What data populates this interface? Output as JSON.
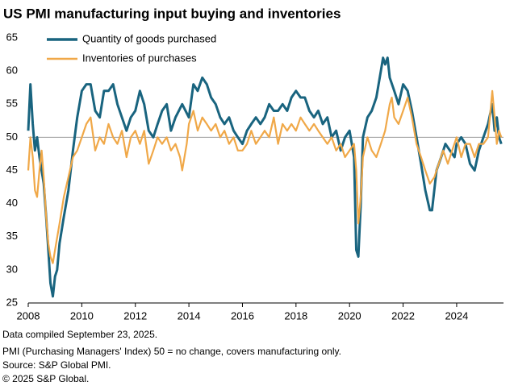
{
  "chart_data": {
    "type": "line",
    "title": "US PMI manufacturing input buying and inventories",
    "xlim": [
      2008,
      2025.75
    ],
    "xticks": [
      2008,
      2010,
      2012,
      2014,
      2016,
      2018,
      2020,
      2022,
      2024
    ],
    "ylim": [
      25,
      65
    ],
    "yticks": [
      25,
      30,
      35,
      40,
      45,
      50,
      55,
      60,
      65
    ],
    "reference_line": 50,
    "legend": "top-left",
    "series": [
      {
        "name": "Quantity of goods purchased",
        "color": "#19647f",
        "x": [
          2008.0,
          2008.08,
          2008.17,
          2008.25,
          2008.33,
          2008.42,
          2008.5,
          2008.58,
          2008.67,
          2008.75,
          2008.83,
          2008.92,
          2009.0,
          2009.08,
          2009.17,
          2009.33,
          2009.5,
          2009.67,
          2009.83,
          2010.0,
          2010.17,
          2010.33,
          2010.5,
          2010.67,
          2010.83,
          2011.0,
          2011.17,
          2011.33,
          2011.5,
          2011.67,
          2011.83,
          2012.0,
          2012.17,
          2012.33,
          2012.5,
          2012.67,
          2012.83,
          2013.0,
          2013.17,
          2013.33,
          2013.5,
          2013.75,
          2014.0,
          2014.17,
          2014.33,
          2014.5,
          2014.67,
          2014.83,
          2015.0,
          2015.17,
          2015.33,
          2015.5,
          2015.67,
          2015.83,
          2016.0,
          2016.17,
          2016.33,
          2016.5,
          2016.67,
          2016.83,
          2017.0,
          2017.17,
          2017.33,
          2017.5,
          2017.67,
          2017.83,
          2018.0,
          2018.17,
          2018.33,
          2018.5,
          2018.67,
          2018.83,
          2019.0,
          2019.17,
          2019.33,
          2019.5,
          2019.67,
          2019.83,
          2020.0,
          2020.17,
          2020.25,
          2020.33,
          2020.42,
          2020.5,
          2020.67,
          2020.83,
          2021.0,
          2021.17,
          2021.25,
          2021.33,
          2021.42,
          2021.5,
          2021.67,
          2021.83,
          2022.0,
          2022.17,
          2022.33,
          2022.5,
          2022.67,
          2022.83,
          2023.0,
          2023.08,
          2023.25,
          2023.42,
          2023.58,
          2023.75,
          2023.92,
          2024.0,
          2024.17,
          2024.33,
          2024.5,
          2024.67,
          2024.83,
          2025.0,
          2025.17,
          2025.33,
          2025.42,
          2025.5,
          2025.58,
          2025.67
        ],
        "values": [
          51,
          58,
          52,
          48,
          50,
          47,
          45,
          43,
          38,
          33,
          28,
          26,
          29,
          30,
          34,
          38,
          42,
          48,
          53,
          57,
          58,
          58,
          54,
          53,
          57,
          57,
          58,
          55,
          53,
          51,
          53,
          54,
          57,
          55,
          51,
          50,
          52,
          54,
          55,
          51,
          53,
          55,
          53,
          58,
          57,
          59,
          58,
          56,
          55,
          53,
          52,
          53,
          51,
          50,
          49,
          51,
          52,
          53,
          52,
          53,
          55,
          54,
          54,
          55,
          54,
          56,
          57,
          56,
          56,
          54,
          53,
          54,
          52,
          53,
          50,
          51,
          48,
          50,
          51,
          47,
          33,
          32,
          40,
          50,
          53,
          54,
          56,
          60,
          62,
          61,
          62,
          59,
          57,
          55,
          58,
          57,
          54,
          50,
          46,
          42,
          39,
          39,
          45,
          47,
          49,
          48,
          47,
          49,
          50,
          49,
          46,
          45,
          48,
          50,
          52,
          55,
          51,
          53,
          50,
          49
        ]
      },
      {
        "name": "Inventories of purchases",
        "color": "#f0a848",
        "x": [
          2008.0,
          2008.08,
          2008.17,
          2008.25,
          2008.33,
          2008.42,
          2008.5,
          2008.58,
          2008.67,
          2008.75,
          2008.83,
          2008.92,
          2009.0,
          2009.17,
          2009.33,
          2009.5,
          2009.67,
          2009.83,
          2010.0,
          2010.17,
          2010.33,
          2010.5,
          2010.67,
          2010.83,
          2011.0,
          2011.17,
          2011.33,
          2011.5,
          2011.67,
          2011.83,
          2012.0,
          2012.17,
          2012.33,
          2012.5,
          2012.67,
          2012.83,
          2013.0,
          2013.17,
          2013.33,
          2013.5,
          2013.67,
          2013.75,
          2013.92,
          2014.0,
          2014.17,
          2014.33,
          2014.5,
          2014.67,
          2014.83,
          2015.0,
          2015.17,
          2015.33,
          2015.5,
          2015.67,
          2015.83,
          2016.0,
          2016.17,
          2016.33,
          2016.5,
          2016.67,
          2016.83,
          2017.0,
          2017.17,
          2017.33,
          2017.5,
          2017.67,
          2017.83,
          2018.0,
          2018.17,
          2018.33,
          2018.5,
          2018.67,
          2018.83,
          2019.0,
          2019.17,
          2019.33,
          2019.5,
          2019.67,
          2019.83,
          2020.0,
          2020.17,
          2020.25,
          2020.33,
          2020.42,
          2020.5,
          2020.67,
          2020.83,
          2021.0,
          2021.17,
          2021.33,
          2021.5,
          2021.58,
          2021.67,
          2021.83,
          2022.0,
          2022.17,
          2022.33,
          2022.5,
          2022.67,
          2022.83,
          2023.0,
          2023.17,
          2023.33,
          2023.5,
          2023.67,
          2023.83,
          2024.0,
          2024.17,
          2024.33,
          2024.5,
          2024.67,
          2024.83,
          2025.0,
          2025.17,
          2025.33,
          2025.42,
          2025.5,
          2025.58,
          2025.67
        ],
        "values": [
          45,
          50,
          47,
          42,
          41,
          45,
          48,
          44,
          38,
          34,
          32,
          31,
          33,
          37,
          41,
          44,
          47,
          48,
          50,
          52,
          53,
          48,
          50,
          49,
          52,
          50,
          49,
          51,
          47,
          50,
          51,
          49,
          51,
          46,
          48,
          50,
          49,
          50,
          48,
          49,
          47,
          45,
          49,
          52,
          54,
          51,
          53,
          52,
          51,
          52,
          50,
          51,
          49,
          50,
          48,
          48,
          49,
          51,
          49,
          50,
          51,
          50,
          53,
          49,
          52,
          51,
          52,
          51,
          53,
          52,
          51,
          52,
          51,
          50,
          49,
          50,
          48,
          49,
          47,
          48,
          49,
          45,
          37,
          41,
          47,
          50,
          48,
          47,
          49,
          51,
          55,
          56,
          53,
          52,
          54,
          56,
          53,
          49,
          47,
          45,
          43,
          44,
          46,
          48,
          46,
          48,
          50,
          47,
          49,
          49,
          47,
          49,
          49,
          50,
          57,
          53,
          49,
          51,
          50
        ]
      }
    ],
    "footnotes": [
      "Data compiled September 23, 2025.",
      "PMI (Purchasing Managers' Index) 50 =  no change, covers manufacturing only.",
      "Source: S&P Global PMI.",
      "© 2025 S&P Global."
    ]
  }
}
